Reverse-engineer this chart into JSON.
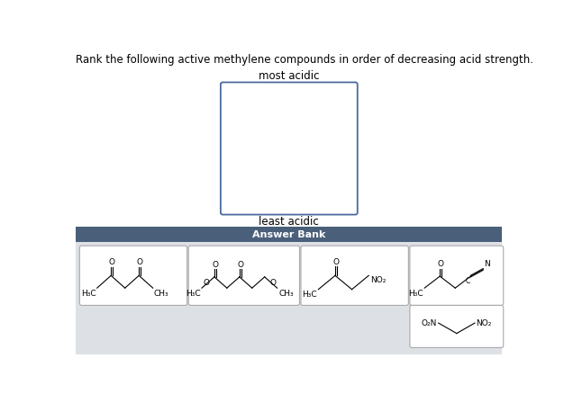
{
  "title": "Rank the following active methylene compounds in order of decreasing acid strength.",
  "most_acidic_label": "most acidic",
  "least_acidic_label": "least acidic",
  "answer_bank_label": "Answer Bank",
  "answer_bank_bg": "#4a5f7a",
  "answer_bank_text_color": "#ffffff",
  "panel_bg": "#dde0e5",
  "box_bg": "#ffffff",
  "box_border": "#aaaaaa",
  "ranking_box_border": "#4a6a9e",
  "ranking_box_bg": "#ffffff",
  "fig_bg": "#ffffff",
  "title_fontsize": 8.5,
  "label_fontsize": 8.5,
  "answer_bank_fontsize": 8,
  "mol_fontsize": 6.5
}
